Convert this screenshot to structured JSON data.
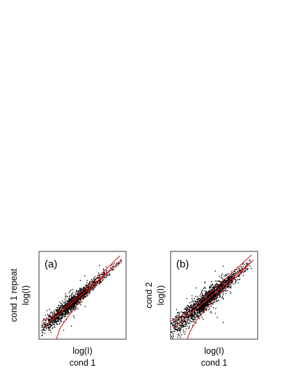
{
  "chart_data": [
    {
      "type": "scatter",
      "panel_label": "(a)",
      "xlabel_lines": [
        "log(I)",
        "cond 1"
      ],
      "ylabel_lines": [
        "cond 1 repeat",
        "log(I)"
      ],
      "grid": false,
      "ticks": false,
      "xlim": [
        0,
        1
      ],
      "ylim": [
        0,
        1
      ],
      "cloud": {
        "count": 1500,
        "center_x": 0.3,
        "spread_x": 0.17,
        "min_x": 0.03,
        "max_x": 0.95,
        "noise_low_x": 0.055,
        "noise_high_x": 0.018
      },
      "fit_line": {
        "x": [
          0.06,
          0.95
        ],
        "y": [
          0.14,
          0.9
        ]
      },
      "envelope": {
        "upper": [
          [
            0.03,
            0.2
          ],
          [
            0.15,
            0.26
          ],
          [
            0.3,
            0.37
          ],
          [
            0.5,
            0.55
          ],
          [
            0.7,
            0.73
          ],
          [
            0.93,
            0.95
          ]
        ],
        "lower": [
          [
            0.2,
            0.0
          ],
          [
            0.24,
            0.12
          ],
          [
            0.32,
            0.24
          ],
          [
            0.5,
            0.47
          ],
          [
            0.7,
            0.67
          ],
          [
            0.93,
            0.89
          ]
        ]
      },
      "colors": {
        "points": "#000000",
        "lines": "#cc1f1f",
        "frame": "#333333"
      }
    },
    {
      "type": "scatter",
      "panel_label": "(b)",
      "xlabel_lines": [
        "log(I)",
        "cond 1"
      ],
      "ylabel_lines": [
        "cond 2",
        "log(I)"
      ],
      "grid": false,
      "ticks": false,
      "xlim": [
        0,
        1
      ],
      "ylim": [
        0,
        1
      ],
      "cloud": {
        "count": 1800,
        "center_x": 0.33,
        "spread_x": 0.2,
        "min_x": 0.01,
        "max_x": 0.93,
        "noise_low_x": 0.07,
        "noise_high_x": 0.03
      },
      "fit_line": {
        "x": [
          0.04,
          0.95
        ],
        "y": [
          0.13,
          0.9
        ]
      },
      "envelope": {
        "upper": [
          [
            0.0,
            0.2
          ],
          [
            0.15,
            0.28
          ],
          [
            0.3,
            0.4
          ],
          [
            0.5,
            0.57
          ],
          [
            0.7,
            0.75
          ],
          [
            0.93,
            0.96
          ]
        ],
        "lower": [
          [
            0.19,
            0.0
          ],
          [
            0.23,
            0.1
          ],
          [
            0.3,
            0.22
          ],
          [
            0.5,
            0.46
          ],
          [
            0.7,
            0.66
          ],
          [
            0.93,
            0.88
          ]
        ]
      },
      "colors": {
        "points": "#000000",
        "lines": "#cc1f1f",
        "frame": "#333333"
      }
    }
  ]
}
